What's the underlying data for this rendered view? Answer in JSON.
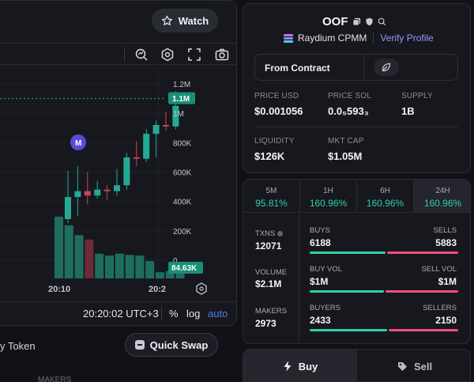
{
  "header": {
    "watch_label": "Watch"
  },
  "chart": {
    "y_ticks": [
      "1.2M",
      "1M",
      "800K",
      "600K",
      "400K",
      "200K",
      "0"
    ],
    "price_marker": "1.1M",
    "volume_marker": "84.63K",
    "x_ticks": [
      "20:10",
      "20:2"
    ],
    "marker_letter": "M",
    "bottom_time": "20:20:02 UTC+3",
    "pct_label": "%",
    "log_label": "log",
    "auto_label": "auto",
    "colors": {
      "up": "#22ab94",
      "down": "#9b3a4a",
      "accent": "#4e7cf0"
    }
  },
  "chart_data": {
    "type": "candlestick",
    "ylim": [
      0,
      1200000
    ],
    "y_ticks": [
      0,
      200000,
      400000,
      600000,
      800000,
      1000000,
      1200000
    ],
    "x_ticks": [
      "20:10",
      "20:2"
    ],
    "last_price": 1100000,
    "last_volume": 84630,
    "candles": [
      {
        "open": 280000,
        "close": 430000,
        "low": 250000,
        "high": 610000
      },
      {
        "open": 430000,
        "close": 470000,
        "low": 300000,
        "high": 640000
      },
      {
        "open": 470000,
        "close": 440000,
        "low": 380000,
        "high": 600000
      },
      {
        "open": 440000,
        "close": 480000,
        "low": 420000,
        "high": 540000
      },
      {
        "open": 480000,
        "close": 470000,
        "low": 410000,
        "high": 510000
      },
      {
        "open": 470000,
        "close": 510000,
        "low": 440000,
        "high": 620000
      },
      {
        "open": 510000,
        "close": 700000,
        "low": 480000,
        "high": 730000
      },
      {
        "open": 700000,
        "close": 690000,
        "low": 640000,
        "high": 810000
      },
      {
        "open": 690000,
        "close": 860000,
        "low": 670000,
        "high": 890000
      },
      {
        "open": 860000,
        "close": 920000,
        "low": 700000,
        "high": 950000
      },
      {
        "open": 920000,
        "close": 910000,
        "low": 880000,
        "high": 1010000
      },
      {
        "open": 910000,
        "close": 1050000,
        "low": 890000,
        "high": 1150000
      }
    ],
    "volumes": [
      {
        "value": 100,
        "dir": "up"
      },
      {
        "value": 86,
        "dir": "up"
      },
      {
        "value": 70,
        "dir": "up"
      },
      {
        "value": 63,
        "dir": "down"
      },
      {
        "value": 40,
        "dir": "up"
      },
      {
        "value": 37,
        "dir": "up"
      },
      {
        "value": 40,
        "dir": "up"
      },
      {
        "value": 38,
        "dir": "up"
      },
      {
        "value": 37,
        "dir": "up"
      },
      {
        "value": 28,
        "dir": "up"
      },
      {
        "value": 10,
        "dir": "up"
      },
      {
        "value": 12,
        "dir": "up"
      },
      {
        "value": 8,
        "dir": "up"
      }
    ]
  },
  "left_bottom": {
    "buy_token_label": "y Token",
    "quick_swap_label": "Quick Swap",
    "makers_label": "MAKERS"
  },
  "token": {
    "name": "OOF",
    "dex": "Raydium CPMM",
    "verify_label": "Verify Profile",
    "from_contract_label": "From Contract",
    "price_usd": {
      "label": "PRICE USD",
      "value": "$0.001056"
    },
    "price_sol": {
      "label": "PRICE SOL",
      "value": "0.0₅593₃"
    },
    "supply": {
      "label": "SUPPLY",
      "value": "1B"
    },
    "liquidity": {
      "label": "LIQUIDITY",
      "value": "$126K"
    },
    "mkt_cap": {
      "label": "MKT CAP",
      "value": "$1.05M"
    }
  },
  "timeframes": [
    {
      "label": "5M",
      "pct": "95.81%"
    },
    {
      "label": "1H",
      "pct": "160.96%"
    },
    {
      "label": "6H",
      "pct": "160.96%"
    },
    {
      "label": "24H",
      "pct": "160.96%"
    }
  ],
  "txn_stats": {
    "txns": {
      "label": "TXNS",
      "value": "12071"
    },
    "volume": {
      "label": "VOLUME",
      "value": "$2.1M"
    },
    "makers": {
      "label": "MAKERS",
      "value": "2973"
    },
    "buys": {
      "label": "BUYS",
      "value": "6188"
    },
    "sells": {
      "label": "SELLS",
      "value": "5883"
    },
    "buy_vol": {
      "label": "BUY VOL",
      "value": "$1M"
    },
    "sell_vol": {
      "label": "SELL VOL",
      "value": "$1M"
    },
    "buyers": {
      "label": "BUYERS",
      "value": "2433"
    },
    "sellers": {
      "label": "SELLERS",
      "value": "2150"
    },
    "colors": {
      "buy": "#2fd0a8",
      "sell": "#ef4f7a"
    }
  },
  "trade": {
    "buy_label": "Buy",
    "sell_label": "Sell"
  }
}
